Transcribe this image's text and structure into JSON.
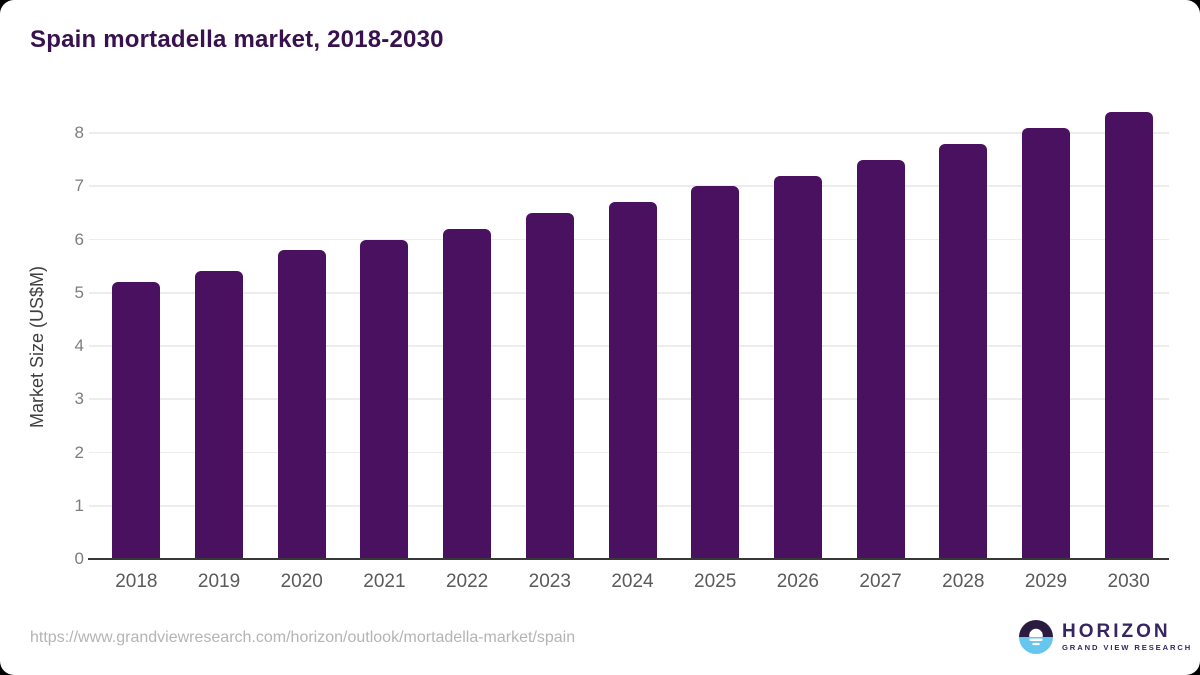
{
  "chart_data": {
    "type": "bar",
    "title": "Spain mortadella market, 2018-2030",
    "categories": [
      "2018",
      "2019",
      "2020",
      "2021",
      "2022",
      "2023",
      "2024",
      "2025",
      "2026",
      "2027",
      "2028",
      "2029",
      "2030"
    ],
    "values": [
      5.2,
      5.4,
      5.8,
      6.0,
      6.2,
      6.5,
      6.7,
      7.0,
      7.2,
      7.5,
      7.8,
      8.1,
      8.4
    ],
    "xlabel": "",
    "ylabel": "Market Size (US$M)",
    "ylim": [
      0,
      8.6
    ],
    "yticks": [
      0,
      1,
      2,
      3,
      4,
      5,
      6,
      7,
      8
    ],
    "grid": true,
    "legend": null,
    "bar_color": "#4a1160"
  },
  "footer": {
    "source_url": "https://www.grandviewresearch.com/horizon/outlook/mortadella-market/spain",
    "logo": {
      "brand": "HORIZON",
      "tagline": "GRAND VIEW RESEARCH"
    }
  },
  "colors": {
    "title": "#38114f",
    "bar": "#4a1160",
    "logo_dark_purple": "#2b1b40",
    "logo_light_blue": "#66c6ee",
    "logo_text_purple": "#362560",
    "axis_line": "#383838",
    "gridline": "#ececec"
  }
}
